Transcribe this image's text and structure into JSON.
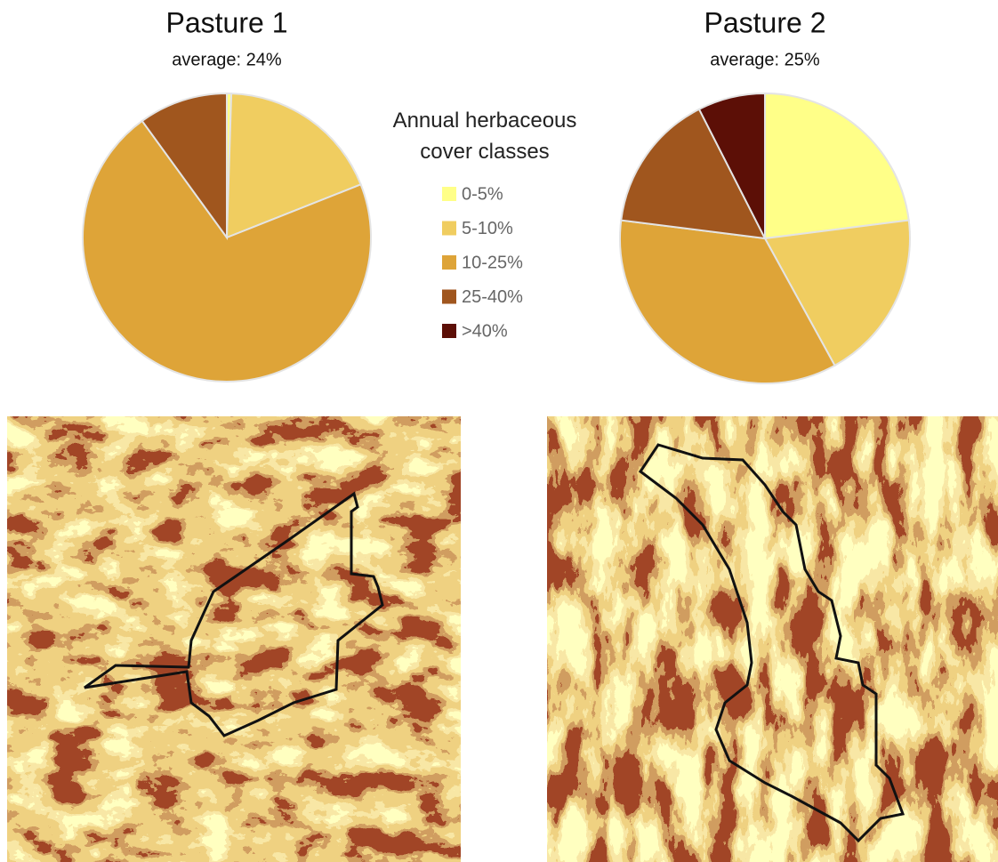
{
  "chart_data": [
    {
      "type": "pie",
      "title": "Pasture 1",
      "subtitle": "average: 24%",
      "legend_title": "Annual herbaceous cover classes",
      "categories": [
        "0-5%",
        "5-10%",
        "10-25%",
        "25-40%",
        ">40%"
      ],
      "values": [
        0.5,
        18.5,
        71,
        10,
        0
      ],
      "colors": [
        "#ffff88",
        "#f0cd60",
        "#dea438",
        "#a0561e",
        "#5c0f06"
      ]
    },
    {
      "type": "pie",
      "title": "Pasture 2",
      "subtitle": "average: 25%",
      "categories": [
        "0-5%",
        "5-10%",
        "10-25%",
        "25-40%",
        ">40%"
      ],
      "values": [
        23,
        19,
        35,
        15.5,
        7.5
      ],
      "colors": [
        "#ffff88",
        "#f0cd60",
        "#dea438",
        "#a0561e",
        "#5c0f06"
      ]
    }
  ]
}
